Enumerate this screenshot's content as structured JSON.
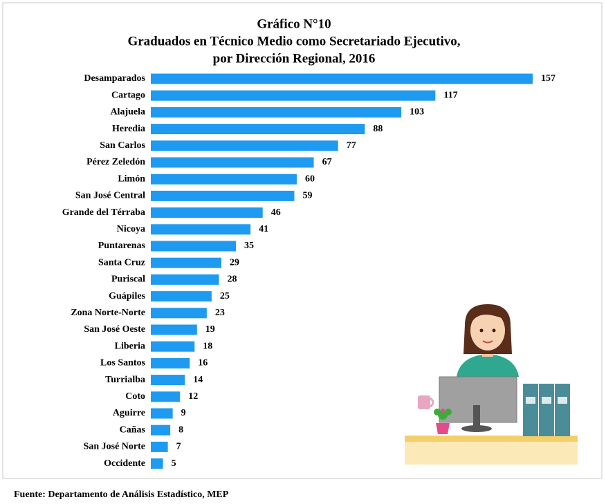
{
  "chart_data": {
    "type": "bar",
    "orientation": "horizontal",
    "title": "Gráfico N°10",
    "subtitle": [
      "Graduados en Técnico Medio como Secretariado Ejecutivo,",
      "por Dirección Regional, 2016"
    ],
    "categories": [
      "Desamparados",
      "Cartago",
      "Alajuela",
      "Heredia",
      "San Carlos",
      "Pérez Zeledón",
      "Limón",
      "San José Central",
      "Grande del Térraba",
      "Nicoya",
      "Puntarenas",
      "Santa Cruz",
      "Puriscal",
      "Guápiles",
      "Zona Norte-Norte",
      "San José Oeste",
      "Liberia",
      "Los Santos",
      "Turrialba",
      "Coto",
      "Aguirre",
      "Cañas",
      "San José Norte",
      "Occidente"
    ],
    "values": [
      157,
      117,
      103,
      88,
      77,
      67,
      60,
      59,
      46,
      41,
      35,
      29,
      28,
      25,
      23,
      19,
      18,
      16,
      14,
      12,
      9,
      8,
      7,
      5
    ],
    "color": "#1e9bf0",
    "source": "Fuente: Departamento de Análisis Estadístico, MEP"
  }
}
